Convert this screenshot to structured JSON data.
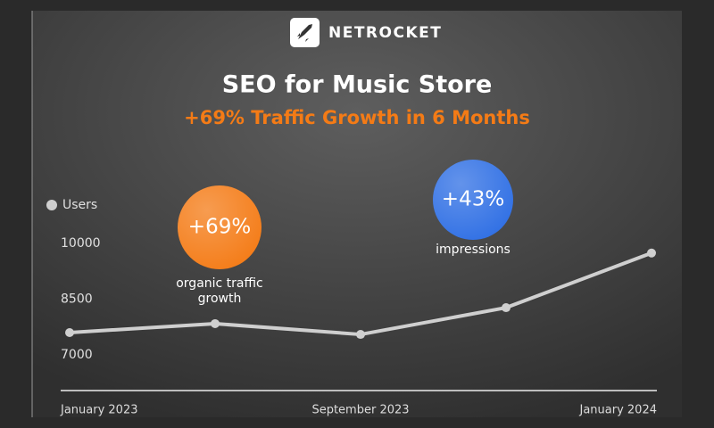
{
  "chart_data": {
    "type": "line",
    "brand": "NETROCKET",
    "title": "SEO for Music Store",
    "subtitle": "+69% Traffic Growth in 6 Months",
    "categories": [
      "January 2023",
      null,
      "September 2023",
      null,
      "January 2024"
    ],
    "series": [
      {
        "name": "Users",
        "color": "#cfcfcf",
        "values": [
          7600,
          7840,
          7550,
          8270,
          9740
        ]
      }
    ],
    "ylim": [
      6040,
      11270
    ],
    "yticks": [
      7000,
      8500,
      10000
    ],
    "annotations": [
      {
        "text": "+69%",
        "label": [
          "organic traffic",
          "growth"
        ],
        "color": "#f47b16"
      },
      {
        "text": "+43%",
        "label": [
          "impressions"
        ],
        "color": "#2f6fe4"
      }
    ]
  }
}
